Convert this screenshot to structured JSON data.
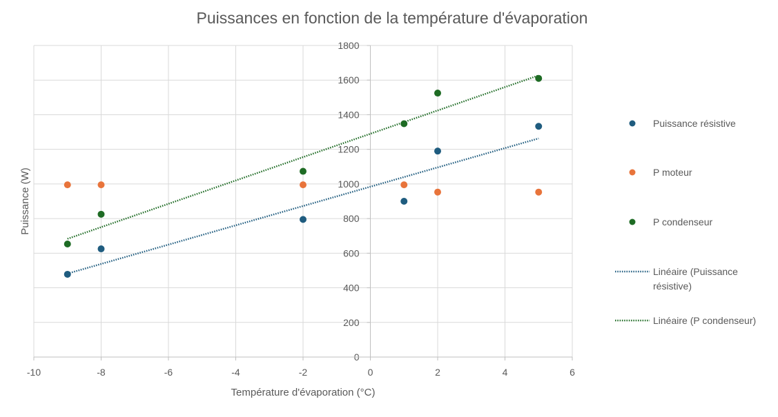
{
  "chart_data": {
    "type": "scatter",
    "title": "Puissances en fonction de la température d'évaporation",
    "xlabel": "Température d'évaporation (°C)",
    "ylabel": "Puissance (W)",
    "xlim": [
      -10,
      6
    ],
    "ylim": [
      0,
      1800
    ],
    "x_ticks": [
      -10,
      -8,
      -6,
      -4,
      -2,
      0,
      2,
      4,
      6
    ],
    "y_ticks": [
      0,
      200,
      400,
      600,
      800,
      1000,
      1200,
      1400,
      1600,
      1800
    ],
    "grid": true,
    "legend_position": "right",
    "series": [
      {
        "name": "Puissance résistive",
        "color": "#1f5c7f",
        "points": [
          {
            "x": -9,
            "y": 478
          },
          {
            "x": -8,
            "y": 625
          },
          {
            "x": -2,
            "y": 795
          },
          {
            "x": 1,
            "y": 900
          },
          {
            "x": 2,
            "y": 1190
          },
          {
            "x": 5,
            "y": 1333
          }
        ]
      },
      {
        "name": "P moteur",
        "color": "#e8743b",
        "points": [
          {
            "x": -9,
            "y": 995
          },
          {
            "x": -8,
            "y": 995
          },
          {
            "x": -2,
            "y": 995
          },
          {
            "x": 1,
            "y": 995
          },
          {
            "x": 2,
            "y": 953
          },
          {
            "x": 5,
            "y": 953
          }
        ]
      },
      {
        "name": "P condenseur",
        "color": "#1e6b24",
        "points": [
          {
            "x": -9,
            "y": 653
          },
          {
            "x": -8,
            "y": 825
          },
          {
            "x": -2,
            "y": 1073
          },
          {
            "x": 1,
            "y": 1348
          },
          {
            "x": 2,
            "y": 1525
          },
          {
            "x": 5,
            "y": 1610
          }
        ]
      }
    ],
    "trendlines": [
      {
        "name": "Linéaire (Puissance résistive)",
        "color": "#1f5c7f",
        "type": "linear",
        "x_range": [
          -9,
          5
        ],
        "y_range": [
          482,
          1263
        ]
      },
      {
        "name": "Linéaire (P condenseur)",
        "color": "#1e6b24",
        "type": "linear",
        "x_range": [
          -9,
          5
        ],
        "y_range": [
          683,
          1627
        ]
      }
    ]
  }
}
